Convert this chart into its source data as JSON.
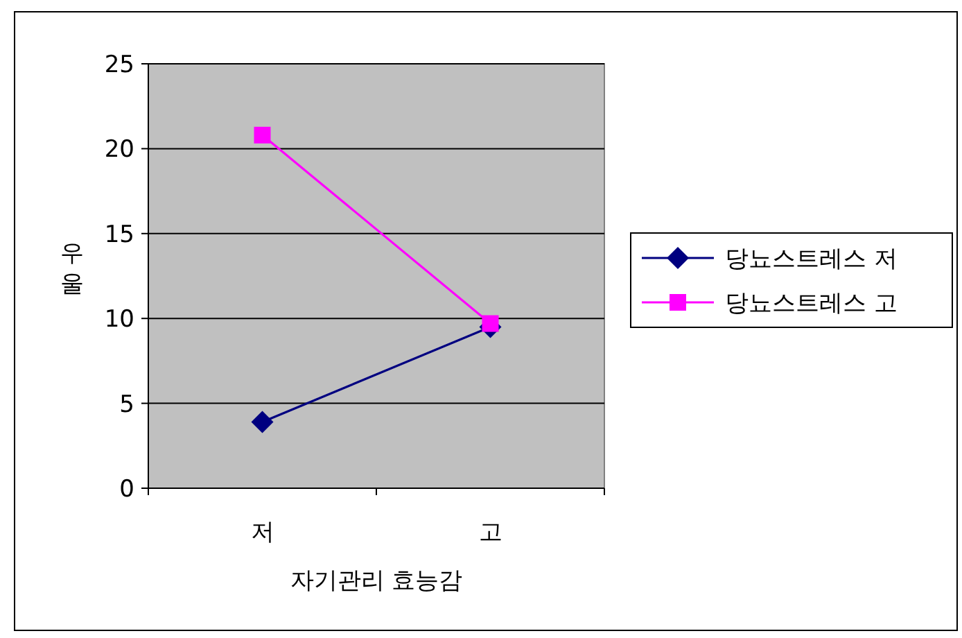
{
  "chart_data": {
    "type": "line",
    "xlabel": "자기관리 효능감",
    "ylabel": "우울",
    "categories": [
      "저",
      "고"
    ],
    "series": [
      {
        "name": "당뇨스트레스 저",
        "color": "#000080",
        "marker": "diamond",
        "values": [
          3.9,
          9.5
        ]
      },
      {
        "name": "당뇨스트레스 고",
        "color": "#ff00ff",
        "marker": "square",
        "values": [
          20.8,
          9.7
        ]
      }
    ],
    "ylim": [
      0,
      25
    ],
    "yticks": [
      0,
      5,
      10,
      15,
      20,
      25
    ],
    "grid": "y",
    "legend": "right",
    "line_style": "solid"
  }
}
